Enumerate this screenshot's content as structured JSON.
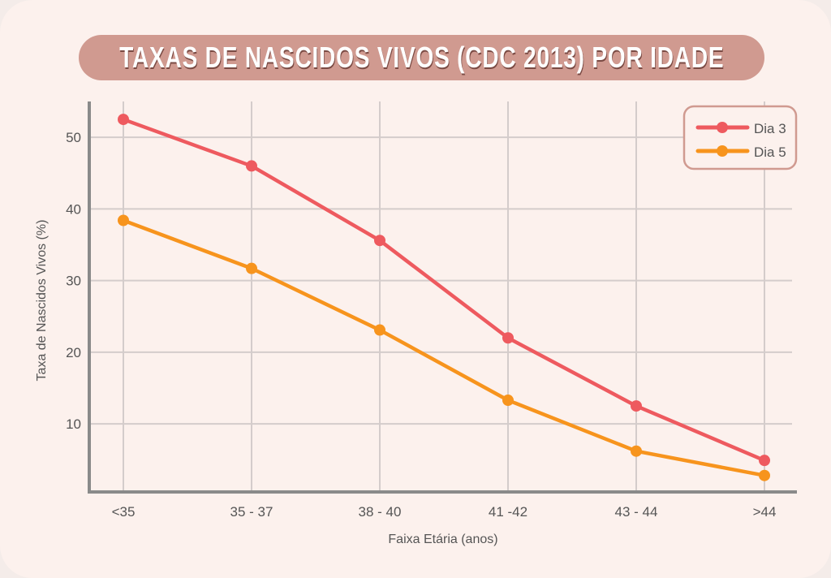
{
  "chart_data": {
    "type": "line",
    "title": "TAXAS DE NASCIDOS VIVOS (CDC 2013) POR IDADE",
    "xlabel": "Faixa Etária (anos)",
    "ylabel": "Taxa de Nascidos Vivos (%)",
    "categories": [
      "<35",
      "35 - 37",
      "38 - 40",
      "41 -42",
      "43 - 44",
      ">44"
    ],
    "yticks": [
      10,
      20,
      30,
      40,
      50
    ],
    "ylim": [
      0.5,
      55
    ],
    "grid": true,
    "legend_position": "top-right",
    "series": [
      {
        "name": "Dia 3",
        "color": "#ee5a5f",
        "values": [
          52.5,
          46.0,
          35.6,
          22.0,
          12.5,
          4.9
        ]
      },
      {
        "name": "Dia 5",
        "color": "#f7941d",
        "values": [
          38.4,
          31.7,
          23.1,
          13.3,
          6.2,
          2.8
        ]
      }
    ]
  }
}
